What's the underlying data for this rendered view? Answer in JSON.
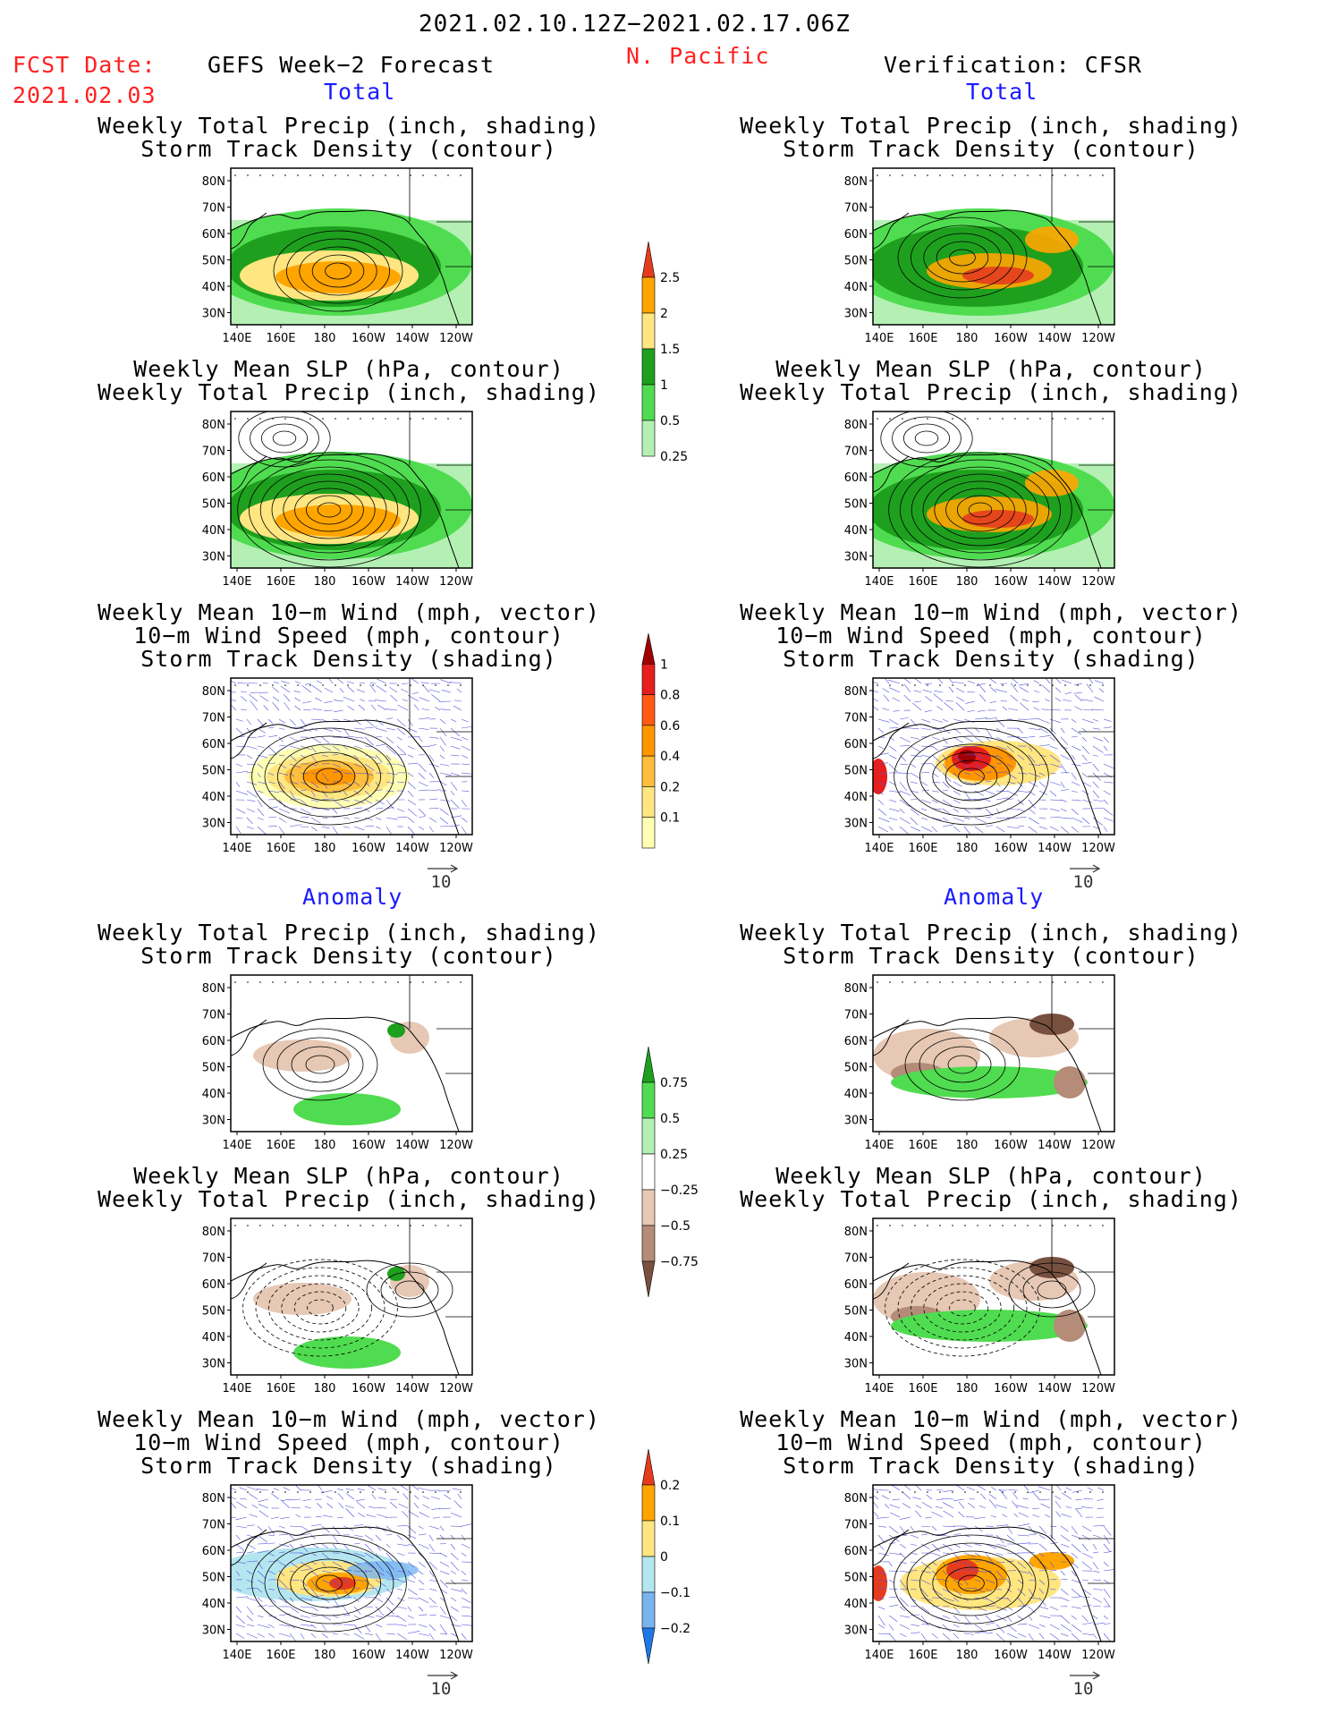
{
  "header": {
    "date_range": "2021.02.10.12Z−2021.02.17.06Z",
    "region": "N. Pacific",
    "fcst_date_label": "FCST Date:",
    "fcst_date_value": "2021.02.03",
    "left_title": "GEFS Week−2 Forecast",
    "right_title": "Verification: CFSR"
  },
  "sections": {
    "total": "Total",
    "anomaly": "Anomaly"
  },
  "panel_titles": {
    "precip_storm": [
      "Weekly Total Precip (inch, shading)",
      "Storm Track Density (contour)"
    ],
    "slp_precip": [
      "Weekly Mean SLP (hPa, contour)",
      "Weekly Total Precip (inch, shading)"
    ],
    "wind_storm": [
      "Weekly Mean 10−m Wind (mph, vector)",
      "10−m Wind Speed (mph, contour)",
      "Storm Track Density (shading)"
    ]
  },
  "map_axes": {
    "lat_labels": [
      "80N",
      "70N",
      "60N",
      "50N",
      "40N",
      "30N"
    ],
    "lon_labels": [
      "140E",
      "160E",
      "180",
      "160W",
      "140W",
      "120W"
    ]
  },
  "vector_reference": "10",
  "colors": {
    "precip": [
      "#b4f0b4",
      "#50dc50",
      "#1ea01e",
      "#ffe680",
      "#ffa500",
      "#e63c1e"
    ],
    "storm": [
      "#ffffb4",
      "#ffe680",
      "#ffbe3c",
      "#ff9600",
      "#ff5a14",
      "#e61e1e",
      "#a00000"
    ],
    "precip_anom_pos": [
      "#b4f0b4",
      "#50dc50",
      "#1ea01e"
    ],
    "precip_anom_neg": [
      "#e6c8b4",
      "#b48c78",
      "#785040"
    ],
    "storm_anom": [
      "#1e78e6",
      "#78b4f0",
      "#b4e6f0",
      "#ffe680",
      "#ffa500",
      "#e63c1e"
    ]
  },
  "chart_data": [
    {
      "type": "heatmap",
      "name": "colorbar-total-precip",
      "units": "inch",
      "levels": [
        0.25,
        0.5,
        1,
        1.5,
        2,
        2.5
      ],
      "tick_labels": [
        "0.25",
        "0.5",
        "1",
        "1.5",
        "2",
        "2.5"
      ]
    },
    {
      "type": "heatmap",
      "name": "colorbar-storm-density",
      "levels": [
        0.1,
        0.2,
        0.4,
        0.6,
        0.8,
        1
      ],
      "tick_labels": [
        "0.1",
        "0.2",
        "0.4",
        "0.6",
        "0.8",
        "1"
      ]
    },
    {
      "type": "heatmap",
      "name": "colorbar-precip-anomaly",
      "units": "inch",
      "levels": [
        -0.75,
        -0.5,
        -0.25,
        0.25,
        0.5,
        0.75
      ],
      "tick_labels": [
        "0.75",
        "0.5",
        "0.25",
        "−0.25",
        "−0.5",
        "−0.75"
      ]
    },
    {
      "type": "heatmap",
      "name": "colorbar-storm-anomaly",
      "levels": [
        -0.2,
        -0.1,
        0,
        0.1,
        0.2
      ],
      "tick_labels": [
        "0.2",
        "0.1",
        "0",
        "−0.1",
        "−0.2"
      ]
    }
  ]
}
